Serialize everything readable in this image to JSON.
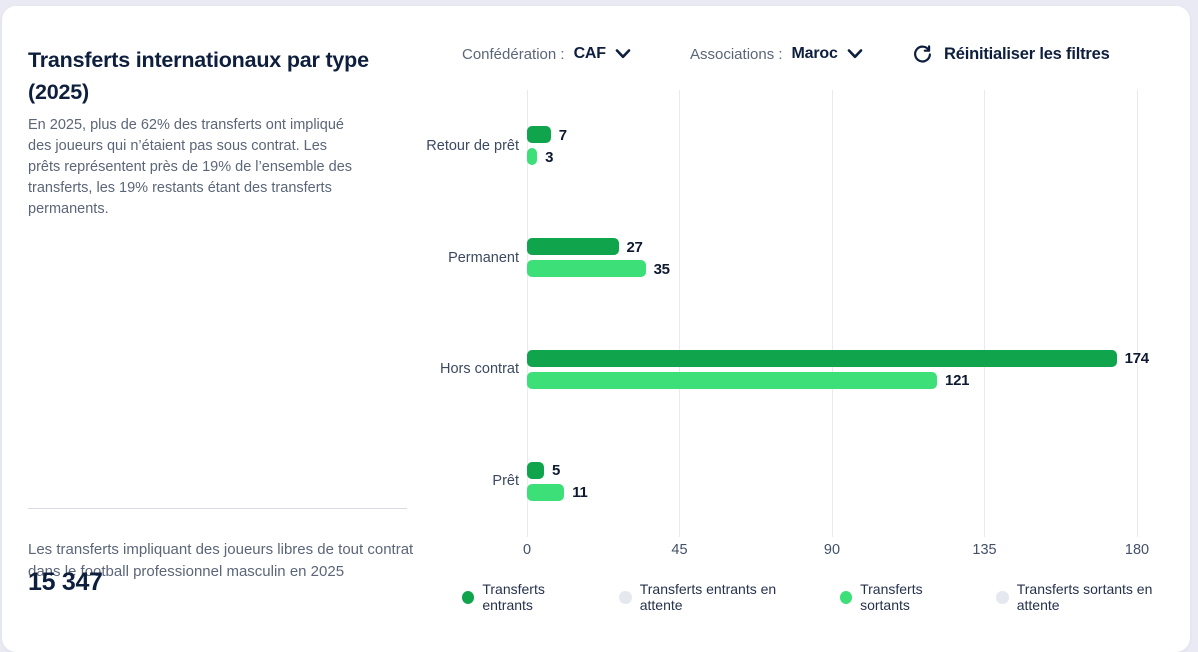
{
  "page": {
    "background": "#e9eaf3",
    "card_background": "#ffffff"
  },
  "header": {
    "title": "Transferts internationaux par type (2025)",
    "description": "En 2025, plus de 62% des transferts ont impliqué des joueurs qui n’étaient pas sous contrat. Les prêts représentent près de 19% de l’ensemble des transferts, les 19% restants étant des transferts permanents."
  },
  "filters": {
    "confederation": {
      "label": "Confédération :",
      "value": "CAF"
    },
    "associations": {
      "label": "Associations :",
      "value": "Maroc"
    },
    "reset_label": "Réinitialiser les filtres"
  },
  "summary": {
    "caption": "Les transferts impliquant des joueurs libres de tout contrat dans le football professionnel masculin en 2025",
    "value": "15 347"
  },
  "chart_data": {
    "type": "bar",
    "orientation": "horizontal",
    "title": "Transferts internationaux par type (2025)",
    "categories": [
      "Retour de prêt",
      "Permanent",
      "Hors contrat",
      "Prêt"
    ],
    "series": [
      {
        "name": "Transferts entrants",
        "color": "#10a44d",
        "values": [
          7,
          27,
          174,
          5
        ]
      },
      {
        "name": "Transferts sortants",
        "color": "#3cdf78",
        "values": [
          3,
          35,
          121,
          11
        ]
      }
    ],
    "xlim": [
      0,
      180
    ],
    "ticks": [
      0,
      45,
      90,
      135,
      180
    ],
    "grid": true,
    "value_labels": true,
    "legend_position": "bottom",
    "legend": [
      {
        "label": "Transferts entrants",
        "color": "#10a44d"
      },
      {
        "label": "Transferts entrants en attente",
        "color": "#e5e8ef"
      },
      {
        "label": "Transferts sortants",
        "color": "#3cdf78"
      },
      {
        "label": "Transferts sortants en attente",
        "color": "#e5e8ef"
      }
    ]
  }
}
